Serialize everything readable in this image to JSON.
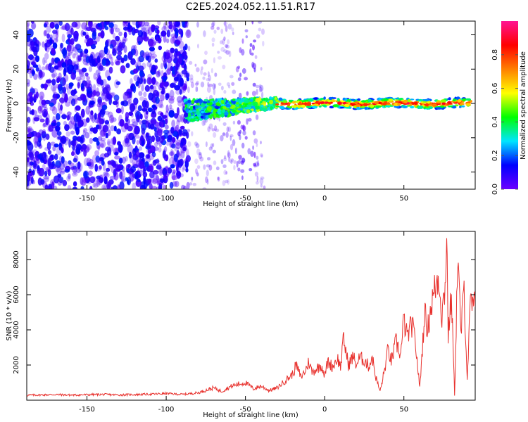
{
  "title": "C2E5.2024.052.11.51.R17",
  "chart_data": [
    {
      "type": "heatmap",
      "xlabel": "Height of straight line (km)",
      "ylabel": "Frequency (Hz)",
      "xlim": [
        -188,
        95
      ],
      "ylim": [
        -50,
        48
      ],
      "xticks": [
        -150,
        -100,
        -50,
        0,
        50
      ],
      "yticks": [
        -40,
        -20,
        0,
        20,
        40
      ],
      "colorbar": {
        "label": "Normalized spectral amplitude",
        "range": [
          0,
          1
        ],
        "ticks": [
          0.0,
          0.2,
          0.4,
          0.6,
          0.8
        ],
        "colormap": [
          "#6b00ff",
          "#0000ff",
          "#00e5ff",
          "#00ff00",
          "#ffff00",
          "#ff7f00",
          "#ff0000",
          "#ff1493"
        ]
      },
      "regions": [
        {
          "x": [
            -188,
            -86
          ],
          "y": [
            -50,
            48
          ],
          "amplitude": 0.12,
          "pattern": "noise"
        },
        {
          "x": [
            -86,
            -38
          ],
          "y": [
            -50,
            48
          ],
          "amplitude": 0.04,
          "pattern": "sparse"
        },
        {
          "x": [
            -88,
            -30
          ],
          "y": [
            -8,
            6
          ],
          "amplitude": 0.3,
          "pattern": "band"
        },
        {
          "x": [
            -30,
            92
          ],
          "y": [
            -3,
            3
          ],
          "amplitude": 0.8,
          "pattern": "line"
        }
      ]
    },
    {
      "type": "line",
      "xlabel": "Height of straight line (km)",
      "ylabel": "SNR (10 * v/v)",
      "xlim": [
        -188,
        95
      ],
      "ylim": [
        0,
        9600
      ],
      "xticks": [
        -150,
        -100,
        -50,
        0,
        50
      ],
      "yticks": [
        2000,
        4000,
        6000,
        8000
      ],
      "series": [
        {
          "color": "#e8322e",
          "x": [
            -188,
            -180,
            -170,
            -160,
            -150,
            -140,
            -130,
            -120,
            -110,
            -100,
            -90,
            -80,
            -75,
            -70,
            -65,
            -60,
            -55,
            -50,
            -45,
            -40,
            -35,
            -30,
            -25,
            -20,
            -18,
            -15,
            -12,
            -10,
            -8,
            -5,
            -2,
            0,
            2,
            5,
            8,
            10,
            12,
            15,
            18,
            20,
            22,
            25,
            28,
            30,
            32,
            35,
            38,
            40,
            42,
            45,
            48,
            50,
            52,
            55,
            57,
            60,
            62,
            63,
            65,
            67,
            70,
            72,
            74,
            76,
            77,
            78,
            80,
            82,
            84,
            86,
            88,
            90,
            92,
            95
          ],
          "y": [
            280,
            300,
            320,
            290,
            310,
            330,
            300,
            320,
            340,
            380,
            330,
            420,
            560,
            700,
            500,
            750,
            900,
            1000,
            650,
            800,
            550,
            700,
            1100,
            1500,
            2000,
            1300,
            1700,
            2200,
            1600,
            1800,
            2000,
            1400,
            2200,
            1900,
            2400,
            1900,
            3500,
            2000,
            2500,
            2000,
            2400,
            2300,
            1900,
            2500,
            1400,
            500,
            1800,
            2900,
            2200,
            3300,
            2600,
            4600,
            3600,
            4300,
            3500,
            700,
            3400,
            5000,
            4000,
            5300,
            6500,
            7100,
            4800,
            6500,
            9500,
            3700,
            6000,
            300,
            8200,
            3800,
            6300,
            1200,
            5500,
            5300
          ]
        }
      ]
    }
  ]
}
